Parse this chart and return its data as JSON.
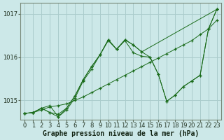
{
  "xlabel": "Graphe pression niveau de la mer (hPa)",
  "bg_color": "#cce8e8",
  "grid_color": "#aacccc",
  "line_color": "#1a6b1a",
  "xlim": [
    -0.5,
    23.5
  ],
  "ylim": [
    1014.55,
    1017.25
  ],
  "yticks": [
    1015,
    1016,
    1017
  ],
  "xticks": [
    0,
    1,
    2,
    3,
    4,
    5,
    6,
    7,
    8,
    9,
    10,
    11,
    12,
    13,
    14,
    15,
    16,
    17,
    18,
    19,
    20,
    21,
    22,
    23
  ],
  "lines": [
    {
      "x": [
        0,
        1,
        2,
        3,
        4,
        5,
        6,
        7,
        8,
        9,
        10,
        11,
        12,
        13,
        14,
        15,
        16,
        17,
        18,
        19,
        20,
        21,
        22,
        23
      ],
      "y": [
        1014.7,
        1014.72,
        1014.78,
        1014.85,
        1014.88,
        1014.92,
        1015.0,
        1015.08,
        1015.18,
        1015.28,
        1015.38,
        1015.48,
        1015.58,
        1015.68,
        1015.78,
        1015.88,
        1015.98,
        1016.08,
        1016.18,
        1016.28,
        1016.38,
        1016.52,
        1016.65,
        1017.1
      ]
    },
    {
      "x": [
        0,
        1,
        2,
        3,
        4,
        5,
        6,
        7,
        8,
        9,
        10,
        11,
        12,
        13,
        14,
        15,
        16,
        17,
        18,
        19,
        20,
        21,
        22,
        23
      ],
      "y": [
        1014.7,
        1014.72,
        1014.82,
        1014.72,
        1014.62,
        1014.78,
        1015.05,
        1015.45,
        1015.72,
        1016.05,
        1016.38,
        1016.18,
        1016.38,
        1016.1,
        1016.02,
        1016.0,
        1015.6,
        1014.98,
        1015.12,
        1015.32,
        1015.45,
        1015.58,
        1016.65,
        1016.85
      ]
    },
    {
      "x": [
        0,
        1,
        2,
        3,
        4,
        5,
        6,
        7,
        8,
        9,
        10,
        11,
        12,
        13,
        14,
        23
      ],
      "y": [
        1014.7,
        1014.72,
        1014.82,
        1014.72,
        1014.68,
        1014.82,
        1015.1,
        1015.48,
        1015.78,
        1016.05,
        1016.4,
        1016.18,
        1016.4,
        1016.28,
        1016.12,
        1017.1
      ]
    },
    {
      "x": [
        0,
        1,
        2,
        3,
        4,
        5,
        6,
        7,
        8,
        9,
        10,
        11,
        12,
        13,
        14,
        15,
        16,
        17,
        18,
        19,
        20,
        21,
        22,
        23
      ],
      "y": [
        1014.7,
        1014.72,
        1014.82,
        1014.88,
        1014.62,
        1014.82,
        1015.1,
        1015.48,
        1015.78,
        1016.05,
        1016.4,
        1016.18,
        1016.4,
        1016.28,
        1016.12,
        1016.0,
        1015.6,
        1014.98,
        1015.12,
        1015.32,
        1015.45,
        1015.58,
        1016.65,
        1017.1
      ]
    }
  ],
  "tick_fontsize": 6,
  "label_fontsize": 7
}
